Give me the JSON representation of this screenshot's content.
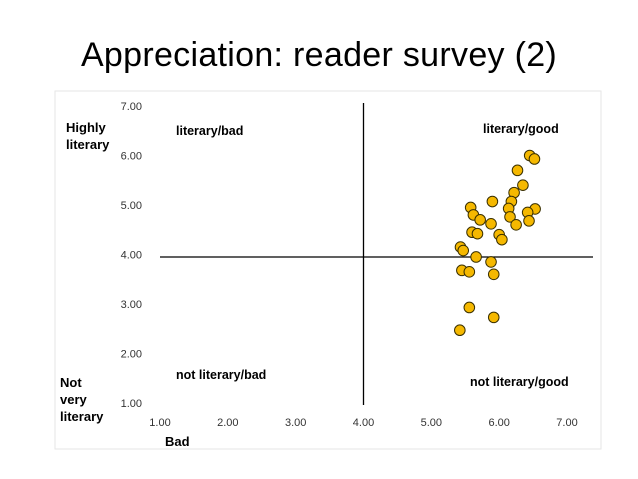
{
  "title": "Appreciation: reader survey (2)",
  "colors": {
    "point_fill": "#F5B800",
    "point_stroke": "#3A3000",
    "axis": "#000000",
    "frame": "#D9D9D9"
  },
  "chart_data": {
    "type": "scatter",
    "xlim": [
      1.0,
      7.0
    ],
    "ylim": [
      1.0,
      7.0
    ],
    "x_ticks": [
      "1.00",
      "2.00",
      "3.00",
      "4.00",
      "5.00",
      "6.00",
      "7.00"
    ],
    "y_ticks": [
      "1.00",
      "2.00",
      "3.00",
      "4.00",
      "5.00",
      "6.00",
      "7.00"
    ],
    "xlabel": "Bad",
    "y_top_label": "Highly literary",
    "y_bottom_label": "Not very literary",
    "reference_lines": {
      "x": 4.0,
      "y": 3.95
    },
    "quadrant_labels": {
      "top_left": "literary/bad",
      "top_right": "literary/good",
      "bottom_left": "not literary/bad",
      "bottom_right": "not literary/good"
    },
    "grid": false,
    "points": [
      {
        "x": 6.45,
        "y": 6.0
      },
      {
        "x": 6.52,
        "y": 5.93
      },
      {
        "x": 6.27,
        "y": 5.7
      },
      {
        "x": 6.35,
        "y": 5.4
      },
      {
        "x": 6.22,
        "y": 5.25
      },
      {
        "x": 6.18,
        "y": 5.07
      },
      {
        "x": 5.9,
        "y": 5.07
      },
      {
        "x": 5.58,
        "y": 4.95
      },
      {
        "x": 6.14,
        "y": 4.93
      },
      {
        "x": 6.53,
        "y": 4.92
      },
      {
        "x": 6.42,
        "y": 4.85
      },
      {
        "x": 5.62,
        "y": 4.8
      },
      {
        "x": 6.16,
        "y": 4.76
      },
      {
        "x": 5.72,
        "y": 4.7
      },
      {
        "x": 6.44,
        "y": 4.68
      },
      {
        "x": 5.88,
        "y": 4.62
      },
      {
        "x": 6.25,
        "y": 4.6
      },
      {
        "x": 5.6,
        "y": 4.45
      },
      {
        "x": 5.68,
        "y": 4.42
      },
      {
        "x": 6.0,
        "y": 4.4
      },
      {
        "x": 6.04,
        "y": 4.3
      },
      {
        "x": 5.43,
        "y": 4.15
      },
      {
        "x": 5.47,
        "y": 4.08
      },
      {
        "x": 5.66,
        "y": 3.95
      },
      {
        "x": 5.88,
        "y": 3.85
      },
      {
        "x": 5.45,
        "y": 3.68
      },
      {
        "x": 5.56,
        "y": 3.65
      },
      {
        "x": 5.92,
        "y": 3.6
      },
      {
        "x": 5.56,
        "y": 2.93
      },
      {
        "x": 5.92,
        "y": 2.73
      },
      {
        "x": 5.42,
        "y": 2.47
      }
    ]
  }
}
